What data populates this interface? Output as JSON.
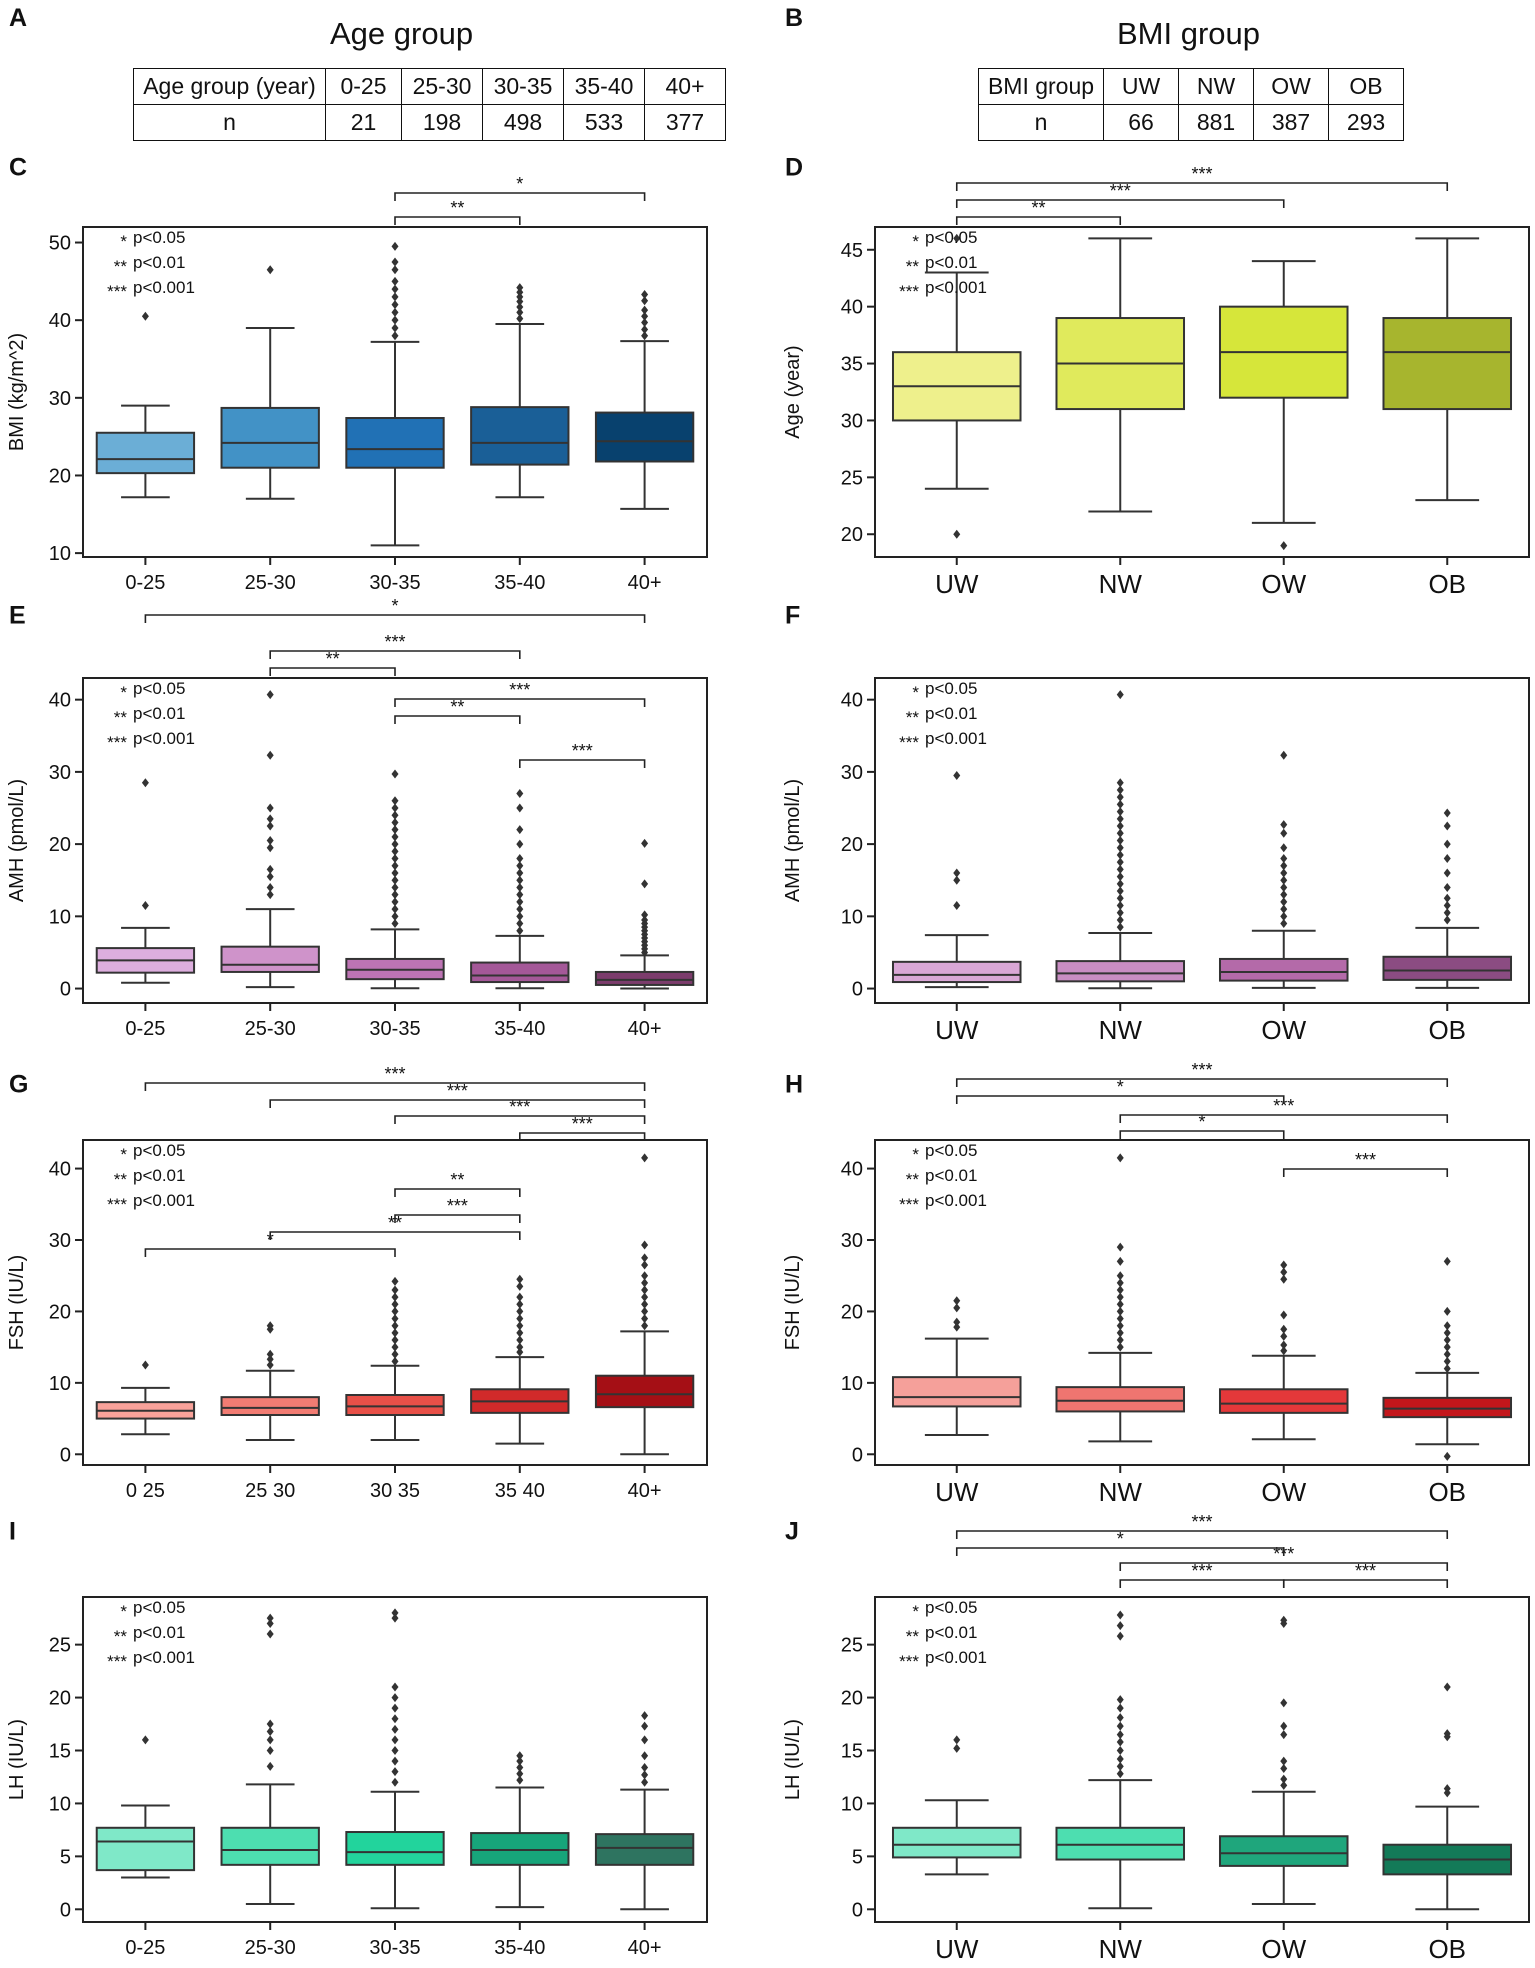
{
  "headers": {
    "A": {
      "label": "A",
      "title": "Age group"
    },
    "B": {
      "label": "B",
      "title": "BMI group"
    }
  },
  "tables": {
    "age": {
      "header": [
        "Age group (year)",
        "0-25",
        "25-30",
        "30-35",
        "35-40",
        "40+"
      ],
      "row": [
        "n",
        "21",
        "198",
        "498",
        "533",
        "377"
      ]
    },
    "bmi": {
      "header": [
        "BMI group",
        "UW",
        "NW",
        "OW",
        "OB"
      ],
      "row": [
        "n",
        "66",
        "881",
        "387",
        "293"
      ]
    }
  },
  "legend_lines": [
    {
      "stars": "*",
      "text": "p<0.05"
    },
    {
      "stars": "**",
      "text": "p<0.01"
    },
    {
      "stars": "***",
      "text": "p<0.001"
    }
  ],
  "colors": {
    "C": [
      "#6baed6",
      "#4292c6",
      "#2171b5",
      "#1a5f97",
      "#08416e"
    ],
    "D": [
      "#eef08c",
      "#e0ea5c",
      "#d6e63a",
      "#a7b52e"
    ],
    "E": [
      "#ddaede",
      "#cf93ca",
      "#bd74b4",
      "#a45898",
      "#7c3c6c"
    ],
    "F": [
      "#d9a7d6",
      "#c98dc3",
      "#b46aa9",
      "#8b4c82"
    ],
    "G": [
      "#f9a29a",
      "#f27c73",
      "#e85048",
      "#d12a2a",
      "#a50f15"
    ],
    "H": [
      "#f5a09a",
      "#ef7570",
      "#e4383a",
      "#c3161b"
    ],
    "I": [
      "#7fe8c8",
      "#4ddeb0",
      "#22d49c",
      "#17a57a",
      "#2e7460"
    ],
    "J": [
      "#7fe8c8",
      "#4ddeb0",
      "#1fa67c",
      "#137a58"
    ]
  },
  "chart_data": [
    {
      "id": "C",
      "label": "C",
      "type": "box",
      "ylabel": "BMI (kg/m^2)",
      "ylim": [
        9.5,
        52
      ],
      "yticks": [
        10,
        20,
        30,
        40,
        50
      ],
      "categories": [
        "0-25",
        "25-30",
        "30-35",
        "35-40",
        "40+"
      ],
      "boxes": [
        {
          "wl": 17.2,
          "q1": 20.3,
          "med": 22.1,
          "q3": 25.5,
          "wh": 29,
          "out": [
            40.5
          ]
        },
        {
          "wl": 17,
          "q1": 21,
          "med": 24.2,
          "q3": 28.7,
          "wh": 39,
          "out": [
            46.5
          ]
        },
        {
          "wl": 11,
          "q1": 21,
          "med": 23.4,
          "q3": 27.4,
          "wh": 37.2,
          "out": [
            38,
            39,
            40,
            41,
            42,
            43,
            44,
            45,
            46.5,
            47.5,
            49.5
          ]
        },
        {
          "wl": 17.2,
          "q1": 21.4,
          "med": 24.2,
          "q3": 28.8,
          "wh": 39.5,
          "out": [
            40.2,
            41,
            41.7,
            42.4,
            43,
            43.6,
            44.2
          ]
        },
        {
          "wl": 15.7,
          "q1": 21.8,
          "med": 24.4,
          "q3": 28.1,
          "wh": 37.3,
          "out": [
            38,
            38.8,
            39.7,
            40.5,
            41.3,
            42.5,
            43.3
          ]
        }
      ],
      "sig": [
        {
          "a": 2,
          "b": 3,
          "label": "**"
        },
        {
          "a": 2,
          "b": 4,
          "label": "*"
        }
      ]
    },
    {
      "id": "D",
      "label": "D",
      "type": "box",
      "ylabel": "Age (year)",
      "ylim": [
        18,
        47
      ],
      "yticks": [
        20,
        25,
        30,
        35,
        40,
        45
      ],
      "categories": [
        "UW",
        "NW",
        "OW",
        "OB"
      ],
      "boxes": [
        {
          "wl": 24,
          "q1": 30,
          "med": 33,
          "q3": 36,
          "wh": 43,
          "out": [
            20,
            46
          ]
        },
        {
          "wl": 22,
          "q1": 31,
          "med": 35,
          "q3": 39,
          "wh": 46,
          "out": []
        },
        {
          "wl": 21,
          "q1": 32,
          "med": 36,
          "q3": 40,
          "wh": 44,
          "out": [
            19
          ]
        },
        {
          "wl": 23,
          "q1": 31,
          "med": 36,
          "q3": 39,
          "wh": 46,
          "out": []
        }
      ],
      "sig": [
        {
          "a": 0,
          "b": 1,
          "label": "**"
        },
        {
          "a": 0,
          "b": 2,
          "label": "***"
        },
        {
          "a": 0,
          "b": 3,
          "label": "***"
        }
      ]
    },
    {
      "id": "E",
      "label": "E",
      "type": "box",
      "ylabel": "AMH (pmol/L)",
      "ylim": [
        -2,
        43
      ],
      "yticks": [
        0,
        10,
        20,
        30,
        40
      ],
      "categories": [
        "0-25",
        "25-30",
        "30-35",
        "35-40",
        "40+"
      ],
      "boxes": [
        {
          "wl": 0.8,
          "q1": 2.2,
          "med": 3.9,
          "q3": 5.6,
          "wh": 8.4,
          "out": [
            11.5,
            28.5
          ]
        },
        {
          "wl": 0.2,
          "q1": 2.3,
          "med": 3.3,
          "q3": 5.8,
          "wh": 11,
          "out": [
            13,
            14,
            15.5,
            16.5,
            19.5,
            20.5,
            22.5,
            23.5,
            25,
            32.3,
            40.7
          ]
        },
        {
          "wl": 0.05,
          "q1": 1.3,
          "med": 2.6,
          "q3": 4.1,
          "wh": 8.2,
          "out": [
            9,
            10,
            11,
            12,
            13,
            14,
            15,
            16,
            17,
            18,
            19,
            20,
            21,
            22,
            23,
            24,
            25,
            26,
            29.7
          ]
        },
        {
          "wl": 0.05,
          "q1": 0.9,
          "med": 1.8,
          "q3": 3.6,
          "wh": 7.3,
          "out": [
            8,
            9,
            10,
            11,
            12,
            13,
            14,
            15,
            16,
            17,
            18,
            20,
            22,
            25,
            27
          ]
        },
        {
          "wl": 0,
          "q1": 0.5,
          "med": 1.2,
          "q3": 2.3,
          "wh": 4.6,
          "out": [
            5,
            5.5,
            6,
            6.5,
            7,
            7.5,
            8,
            8.5,
            9,
            9.5,
            10.2,
            14.5,
            20.1
          ]
        }
      ],
      "sig": [
        {
          "a": 1,
          "b": 2,
          "label": "**"
        },
        {
          "a": 1,
          "b": 3,
          "label": "***"
        },
        {
          "a": 2,
          "b": 3,
          "label": "**"
        },
        {
          "a": 2,
          "b": 4,
          "label": "***"
        },
        {
          "a": 3,
          "b": 4,
          "label": "***"
        },
        {
          "a": 0,
          "b": 4,
          "label": "*"
        }
      ]
    },
    {
      "id": "F",
      "label": "F",
      "type": "box",
      "ylabel": "AMH (pmol/L)",
      "ylim": [
        -2,
        43
      ],
      "yticks": [
        0,
        10,
        20,
        30,
        40
      ],
      "categories": [
        "UW",
        "NW",
        "OW",
        "OB"
      ],
      "boxes": [
        {
          "wl": 0.2,
          "q1": 0.9,
          "med": 1.9,
          "q3": 3.7,
          "wh": 7.4,
          "out": [
            11.5,
            15,
            16,
            29.5
          ]
        },
        {
          "wl": 0.05,
          "q1": 1,
          "med": 2.1,
          "q3": 3.8,
          "wh": 7.7,
          "out": [
            8.5,
            9.5,
            10.5,
            11.5,
            12.5,
            13.5,
            14.5,
            15.5,
            16.5,
            17.5,
            18.5,
            19.5,
            20.5,
            21.5,
            22.5,
            23.5,
            24.5,
            25.5,
            26.5,
            27.5,
            28.5,
            40.7
          ]
        },
        {
          "wl": 0.1,
          "q1": 1.1,
          "med": 2.3,
          "q3": 4.1,
          "wh": 8,
          "out": [
            9,
            10,
            11,
            12,
            13,
            14,
            15,
            16,
            17,
            18,
            19.5,
            21.5,
            22.7,
            32.3
          ]
        },
        {
          "wl": 0.1,
          "q1": 1.2,
          "med": 2.5,
          "q3": 4.4,
          "wh": 8.4,
          "out": [
            9.5,
            10.5,
            11.5,
            12.5,
            14,
            16,
            18,
            20,
            22.5,
            24.3
          ]
        }
      ],
      "sig": []
    },
    {
      "id": "G",
      "label": "G",
      "type": "box",
      "ylabel": "FSH (IU/L)",
      "ylim": [
        -1.5,
        44
      ],
      "yticks": [
        0,
        10,
        20,
        30,
        40
      ],
      "categories": [
        "0 25",
        "25 30",
        "30 35",
        "35 40",
        "40+"
      ],
      "boxes": [
        {
          "wl": 2.8,
          "q1": 5,
          "med": 6.1,
          "q3": 7.3,
          "wh": 9.3,
          "out": [
            12.5
          ]
        },
        {
          "wl": 2,
          "q1": 5.5,
          "med": 6.5,
          "q3": 8,
          "wh": 11.7,
          "out": [
            12.5,
            13.3,
            14,
            17.5,
            18
          ]
        },
        {
          "wl": 2,
          "q1": 5.5,
          "med": 6.7,
          "q3": 8.3,
          "wh": 12.4,
          "out": [
            13,
            14,
            15,
            16,
            17,
            18,
            19,
            20,
            21,
            22,
            23,
            24.2
          ]
        },
        {
          "wl": 1.5,
          "q1": 5.8,
          "med": 7.4,
          "q3": 9.1,
          "wh": 13.6,
          "out": [
            14.3,
            15,
            16,
            17,
            18,
            19,
            20,
            21,
            22,
            23.5,
            24.5
          ]
        },
        {
          "wl": 0,
          "q1": 6.6,
          "med": 8.4,
          "q3": 11,
          "wh": 17.2,
          "out": [
            18,
            19,
            20,
            21,
            22,
            23,
            24,
            25,
            26.5,
            27.5,
            29.3,
            41.5
          ]
        }
      ],
      "sig": [
        {
          "a": 0,
          "b": 2,
          "label": "*"
        },
        {
          "a": 1,
          "b": 3,
          "label": "**"
        },
        {
          "a": 2,
          "b": 3,
          "label": "***"
        },
        {
          "a": 2,
          "b": 3,
          "label": "**"
        },
        {
          "a": 3,
          "b": 4,
          "label": "***"
        },
        {
          "a": 2,
          "b": 4,
          "label": "***"
        },
        {
          "a": 1,
          "b": 4,
          "label": "***"
        },
        {
          "a": 0,
          "b": 4,
          "label": "***"
        }
      ]
    },
    {
      "id": "H",
      "label": "H",
      "type": "box",
      "ylabel": "FSH (IU/L)",
      "ylim": [
        -1.5,
        44
      ],
      "yticks": [
        0,
        10,
        20,
        30,
        40
      ],
      "categories": [
        "UW",
        "NW",
        "OW",
        "OB"
      ],
      "boxes": [
        {
          "wl": 2.7,
          "q1": 6.7,
          "med": 8,
          "q3": 10.8,
          "wh": 16.2,
          "out": [
            17.8,
            18.5,
            20.5,
            21.5
          ]
        },
        {
          "wl": 1.8,
          "q1": 6,
          "med": 7.5,
          "q3": 9.4,
          "wh": 14.2,
          "out": [
            15,
            16,
            17,
            18,
            19,
            20,
            21,
            22,
            23,
            24,
            25,
            27,
            29,
            41.5
          ]
        },
        {
          "wl": 2.1,
          "q1": 5.8,
          "med": 7.1,
          "q3": 9.1,
          "wh": 13.8,
          "out": [
            14.5,
            15.3,
            16.5,
            17.5,
            19.5,
            24.5,
            25.5,
            26.5
          ]
        },
        {
          "wl": 1.4,
          "q1": 5.2,
          "med": 6.4,
          "q3": 7.9,
          "wh": 11.4,
          "out": [
            12,
            13,
            14,
            15,
            16,
            17,
            18,
            20,
            27,
            -0.3
          ]
        }
      ],
      "sig": [
        {
          "a": 2,
          "b": 3,
          "label": "***"
        },
        {
          "a": 1,
          "b": 2,
          "label": "*"
        },
        {
          "a": 1,
          "b": 3,
          "label": "***"
        },
        {
          "a": 0,
          "b": 2,
          "label": "*"
        },
        {
          "a": 0,
          "b": 3,
          "label": "***"
        }
      ]
    },
    {
      "id": "I",
      "label": "I",
      "type": "box",
      "ylabel": "LH (IU/L)",
      "ylim": [
        -1.2,
        29.5
      ],
      "yticks": [
        0,
        5,
        10,
        15,
        20,
        25
      ],
      "categories": [
        "0-25",
        "25-30",
        "30-35",
        "35-40",
        "40+"
      ],
      "boxes": [
        {
          "wl": 3,
          "q1": 3.7,
          "med": 6.4,
          "q3": 7.7,
          "wh": 9.8,
          "out": [
            16
          ]
        },
        {
          "wl": 0.5,
          "q1": 4.2,
          "med": 5.6,
          "q3": 7.7,
          "wh": 11.8,
          "out": [
            13.5,
            15,
            16,
            16.8,
            17.5,
            26,
            27,
            27.5
          ]
        },
        {
          "wl": 0.1,
          "q1": 4.2,
          "med": 5.4,
          "q3": 7.3,
          "wh": 11.1,
          "out": [
            12,
            13,
            14,
            15,
            16,
            17,
            18,
            19,
            20,
            21,
            27.5,
            28
          ]
        },
        {
          "wl": 0.2,
          "q1": 4.2,
          "med": 5.6,
          "q3": 7.2,
          "wh": 11.5,
          "out": [
            12.2,
            12.8,
            13.4,
            14,
            14.5
          ]
        },
        {
          "wl": 0,
          "q1": 4.2,
          "med": 5.8,
          "q3": 7.1,
          "wh": 11.3,
          "out": [
            12,
            12.7,
            13.4,
            14.5,
            16,
            17.3,
            18.3
          ]
        }
      ],
      "sig": []
    },
    {
      "id": "J",
      "label": "J",
      "type": "box",
      "ylabel": "LH (IU/L)",
      "ylim": [
        -1.2,
        29.5
      ],
      "yticks": [
        0,
        5,
        10,
        15,
        20,
        25
      ],
      "categories": [
        "UW",
        "NW",
        "OW",
        "OB"
      ],
      "boxes": [
        {
          "wl": 3.3,
          "q1": 4.9,
          "med": 6.1,
          "q3": 7.7,
          "wh": 10.3,
          "out": [
            15.2,
            16
          ]
        },
        {
          "wl": 0.1,
          "q1": 4.7,
          "med": 6.1,
          "q3": 7.7,
          "wh": 12.2,
          "out": [
            12.8,
            13.5,
            14.2,
            15,
            15.8,
            16.5,
            17.3,
            18.1,
            19,
            19.8,
            25.8,
            26.8,
            27.8
          ]
        },
        {
          "wl": 0.5,
          "q1": 4.1,
          "med": 5.3,
          "q3": 6.9,
          "wh": 11.1,
          "out": [
            11.7,
            12.3,
            13.3,
            14,
            16.5,
            17.3,
            19.5,
            27,
            27.3
          ]
        },
        {
          "wl": 0,
          "q1": 3.3,
          "med": 4.7,
          "q3": 6.1,
          "wh": 9.7,
          "out": [
            11,
            11.4,
            16.3,
            16.6,
            21
          ]
        }
      ],
      "sig": [
        {
          "a": 1,
          "b": 2,
          "label": "***"
        },
        {
          "a": 2,
          "b": 3,
          "label": "***"
        },
        {
          "a": 1,
          "b": 3,
          "label": "***"
        },
        {
          "a": 0,
          "b": 2,
          "label": "*"
        },
        {
          "a": 0,
          "b": 3,
          "label": "***"
        }
      ]
    }
  ]
}
